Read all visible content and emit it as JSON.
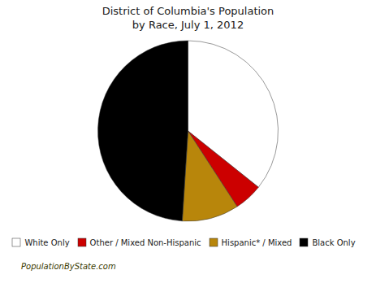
{
  "chart_data": {
    "type": "pie",
    "title": "District of Columbia's Population\nby Race, July 1, 2012",
    "categories": [
      "White Only",
      "Other / Mixed Non-Hispanic",
      "Hispanic* / Mixed",
      "Black Only"
    ],
    "values": [
      35.0,
      5.0,
      10.0,
      48.0
    ],
    "colors": [
      "#ffffff",
      "#cc0000",
      "#b8860b",
      "#000000"
    ],
    "legend": "bottom",
    "annotations": [
      "PopulationByState.com"
    ]
  }
}
